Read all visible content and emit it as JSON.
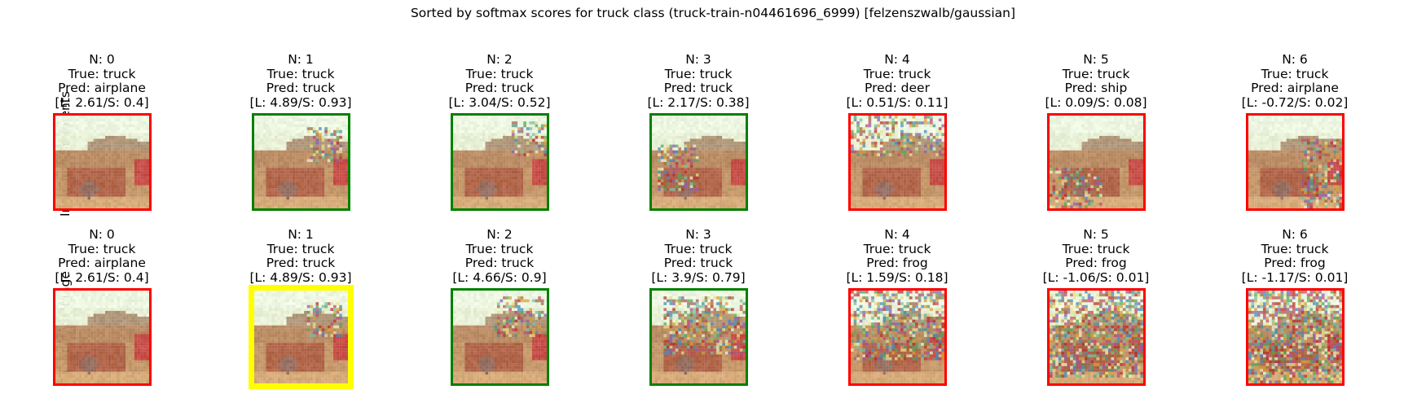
{
  "title": "Sorted by softmax scores for truck class (truck-train-n04461696_6999) [felzenszwalb/gaussian]",
  "row_labels": [
    "Indvidual Segments",
    "Cumulative Image"
  ],
  "colors": {
    "correct": "#008000",
    "incorrect": "#ff0000",
    "highlight": "#ffff00"
  },
  "chart_data": {
    "type": "table",
    "rows": [
      {
        "label": "Indvidual Segments",
        "panels": [
          {
            "n": "N: 0",
            "true": "True: truck",
            "pred": "Pred: airplane",
            "scores": "[L: 2.61/S: 0.4]",
            "logit": 2.61,
            "softmax": 0.4,
            "border": "incorrect"
          },
          {
            "n": "N: 1",
            "true": "True: truck",
            "pred": "Pred: truck",
            "scores": "[L: 4.89/S: 0.93]",
            "logit": 4.89,
            "softmax": 0.93,
            "border": "correct"
          },
          {
            "n": "N: 2",
            "true": "True: truck",
            "pred": "Pred: truck",
            "scores": "[L: 3.04/S: 0.52]",
            "logit": 3.04,
            "softmax": 0.52,
            "border": "correct"
          },
          {
            "n": "N: 3",
            "true": "True: truck",
            "pred": "Pred: truck",
            "scores": "[L: 2.17/S: 0.38]",
            "logit": 2.17,
            "softmax": 0.38,
            "border": "correct"
          },
          {
            "n": "N: 4",
            "true": "True: truck",
            "pred": "Pred: deer",
            "scores": "[L: 0.51/S: 0.11]",
            "logit": 0.51,
            "softmax": 0.11,
            "border": "incorrect"
          },
          {
            "n": "N: 5",
            "true": "True: truck",
            "pred": "Pred: ship",
            "scores": "[L: 0.09/S: 0.08]",
            "logit": 0.09,
            "softmax": 0.08,
            "border": "incorrect"
          },
          {
            "n": "N: 6",
            "true": "True: truck",
            "pred": "Pred: airplane",
            "scores": "[L: -0.72/S: 0.02]",
            "logit": -0.72,
            "softmax": 0.02,
            "border": "incorrect"
          }
        ]
      },
      {
        "label": "Cumulative Image",
        "panels": [
          {
            "n": "N: 0",
            "true": "True: truck",
            "pred": "Pred: airplane",
            "scores": "[L: 2.61/S: 0.4]",
            "logit": 2.61,
            "softmax": 0.4,
            "border": "incorrect"
          },
          {
            "n": "N: 1",
            "true": "True: truck",
            "pred": "Pred: truck",
            "scores": "[L: 4.89/S: 0.93]",
            "logit": 4.89,
            "softmax": 0.93,
            "border": "highlight"
          },
          {
            "n": "N: 2",
            "true": "True: truck",
            "pred": "Pred: truck",
            "scores": "[L: 4.66/S: 0.9]",
            "logit": 4.66,
            "softmax": 0.9,
            "border": "correct"
          },
          {
            "n": "N: 3",
            "true": "True: truck",
            "pred": "Pred: truck",
            "scores": "[L: 3.9/S: 0.79]",
            "logit": 3.9,
            "softmax": 0.79,
            "border": "correct"
          },
          {
            "n": "N: 4",
            "true": "True: truck",
            "pred": "Pred: frog",
            "scores": "[L: 1.59/S: 0.18]",
            "logit": 1.59,
            "softmax": 0.18,
            "border": "incorrect"
          },
          {
            "n": "N: 5",
            "true": "True: truck",
            "pred": "Pred: frog",
            "scores": "[L: -1.06/S: 0.01]",
            "logit": -1.06,
            "softmax": 0.01,
            "border": "incorrect"
          },
          {
            "n": "N: 6",
            "true": "True: truck",
            "pred": "Pred: frog",
            "scores": "[L: -1.17/S: 0.01]",
            "logit": -1.17,
            "softmax": 0.01,
            "border": "incorrect"
          }
        ]
      }
    ]
  }
}
